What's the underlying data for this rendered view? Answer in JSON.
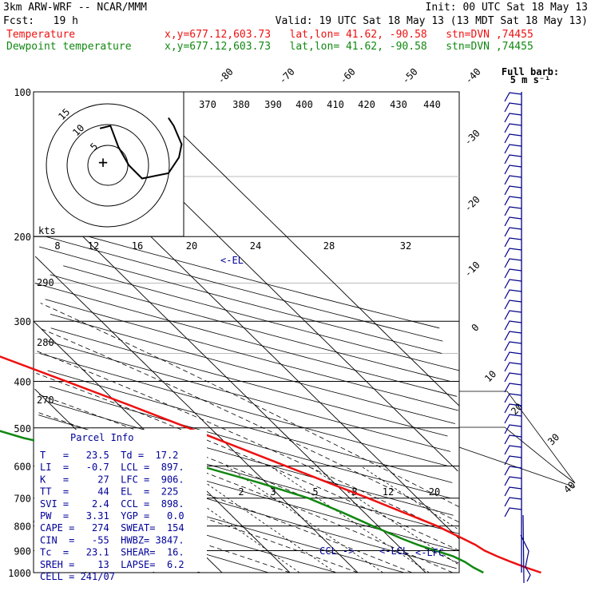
{
  "header": {
    "title": "3km ARW-WRF -- NCAR/MMM",
    "init": "Init: 00 UTC Sat 18 May 13",
    "fcst": "Fcst:   19 h",
    "valid": "Valid: 19 UTC Sat 18 May 13 (13 MDT Sat 18 May 13)",
    "temp_label": "Temperature",
    "temp_loc": "x,y=677.12,603.73   lat,lon= 41.62, -90.58   stn=DVN ,74455",
    "dew_label": "Dewpoint temperature",
    "dew_loc": "x,y=677.12,603.73   lat,lon= 41.62, -90.58   stn=DVN ,74455"
  },
  "colors": {
    "temperature": "#ee1111",
    "dewpoint": "#118811",
    "barbs": "#000088",
    "accent": "#000099"
  },
  "chart_data": {
    "type": "line",
    "pressure_levels": [
      "100",
      "200",
      "300",
      "400",
      "500",
      "600",
      "700",
      "800",
      "900",
      "1000"
    ],
    "isotherms": [
      "-80",
      "-70",
      "-60",
      "-50",
      "-40",
      "-30",
      "-20",
      "-10",
      "0",
      "10",
      "20",
      "30",
      "40"
    ],
    "theta_labels": [
      "370",
      "380",
      "390",
      "400",
      "410",
      "420",
      "430",
      "440"
    ],
    "theta_side_labels": [
      "290",
      "280",
      "270"
    ],
    "mixing_ratio_labels": [
      "2",
      "3",
      "5",
      "8",
      "12",
      "20"
    ],
    "hodo_speed_labels": [
      "8",
      "12",
      "16",
      "20",
      "24",
      "28",
      "32"
    ],
    "hodo_ring_labels": [
      "5",
      "10",
      "15"
    ],
    "kts_label": "kts",
    "series": [
      {
        "name": "Temperature",
        "color": "#ee1111",
        "points": [
          [
            1000,
            27
          ],
          [
            975,
            25.5
          ],
          [
            950,
            24.2
          ],
          [
            925,
            23.0
          ],
          [
            900,
            22.0
          ],
          [
            875,
            21.5
          ],
          [
            850,
            20.6
          ],
          [
            800,
            18.7
          ],
          [
            750,
            15.8
          ],
          [
            700,
            12.7
          ],
          [
            650,
            9.2
          ],
          [
            600,
            5.4
          ],
          [
            550,
            1.3
          ],
          [
            500,
            -3.2
          ],
          [
            450,
            -8.3
          ],
          [
            400,
            -14.2
          ],
          [
            350,
            -21.0
          ],
          [
            300,
            -29.0
          ],
          [
            250,
            -38.5
          ],
          [
            225,
            -44.0
          ],
          [
            200,
            -51.0
          ],
          [
            180,
            -53.5
          ],
          [
            150,
            -54.5
          ],
          [
            125,
            -53.5
          ],
          [
            100,
            -52.5
          ]
        ]
      },
      {
        "name": "Dewpoint temperature",
        "color": "#118811",
        "points": [
          [
            1000,
            18.5
          ],
          [
            975,
            17.8
          ],
          [
            950,
            17.4
          ],
          [
            925,
            16.5
          ],
          [
            900,
            14.8
          ],
          [
            875,
            13.0
          ],
          [
            850,
            11.6
          ],
          [
            800,
            9.2
          ],
          [
            750,
            6.8
          ],
          [
            700,
            3.9
          ],
          [
            650,
            -1.0
          ],
          [
            600,
            -7.2
          ],
          [
            575,
            -15.0
          ],
          [
            550,
            -24.0
          ],
          [
            525,
            -29.0
          ],
          [
            500,
            -32.5
          ],
          [
            450,
            -40.0
          ],
          [
            400,
            -47.5
          ],
          [
            350,
            -55.0
          ],
          [
            300,
            -50.5
          ],
          [
            275,
            -54.5
          ],
          [
            250,
            -59.5
          ],
          [
            225,
            -63.5
          ],
          [
            200,
            -65.5
          ],
          [
            180,
            -64.5
          ],
          [
            150,
            -67.5
          ],
          [
            125,
            -71.0
          ],
          [
            100,
            -75.0
          ]
        ]
      }
    ],
    "annotations": [
      {
        "text": "<-EL",
        "p": 225
      },
      {
        "text": "CCL ->",
        "p": 898
      },
      {
        "text": "<-LCL",
        "p": 897
      },
      {
        "text": "<-LFC",
        "p": 906
      }
    ],
    "hodograph_path": [
      [
        -3,
        14
      ],
      [
        1,
        15
      ],
      [
        4,
        7
      ],
      [
        8,
        0
      ],
      [
        13,
        -5
      ],
      [
        23,
        -3
      ],
      [
        27,
        3
      ],
      [
        28,
        8
      ],
      [
        25,
        15
      ],
      [
        23,
        18
      ]
    ],
    "wind_barb_title": "Full barb:",
    "wind_barb_unit": "5 m s⁻¹"
  },
  "parcel_info": {
    "title": "Parcel Info",
    "rows": [
      "T   =   23.5  Td =  17.2",
      "LI  =   -0.7  LCL =  897.",
      "K   =     27  LFC =  906.",
      "TT  =     44  EL  =  225",
      "SVI =    2.4  CCL =  898.",
      "PW  =   3.31  YGP =   0.0",
      "CAPE =   274  SWEAT=  154",
      "CIN  =   -55  HWBZ= 3847.",
      "Tc  =   23.1  SHEAR=  16.",
      "SREH =    13  LAPSE=  6.2",
      "CELL = 241/07"
    ]
  }
}
